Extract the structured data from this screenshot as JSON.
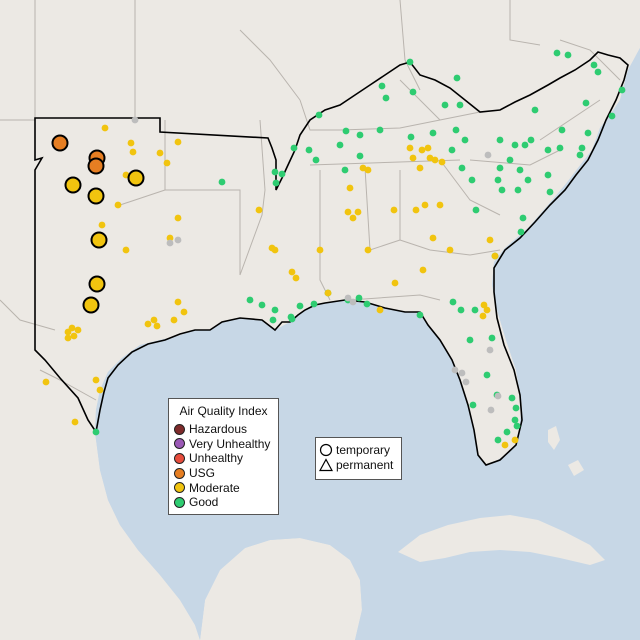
{
  "legend_aqi": {
    "title": "Air Quality Index",
    "items": [
      {
        "label": "Hazardous",
        "color": "#7e2a2a"
      },
      {
        "label": "Very Unhealthy",
        "color": "#9b59b6"
      },
      {
        "label": "Unhealthy",
        "color": "#e74c3c"
      },
      {
        "label": "USG",
        "color": "#e67e22"
      },
      {
        "label": "Moderate",
        "color": "#f1c40f"
      },
      {
        "label": "Good",
        "color": "#2ecc71"
      }
    ]
  },
  "legend_type": {
    "items": [
      {
        "label": "temporary",
        "shape": "circle-icon"
      },
      {
        "label": "permanent",
        "shape": "triangle-icon"
      }
    ]
  },
  "colors": {
    "land": "#ece9e4",
    "water": "#c7d7e6",
    "state_border": "#b9b4ae",
    "region_outline": "#000000",
    "no_data": "#bdbdbd"
  }
}
